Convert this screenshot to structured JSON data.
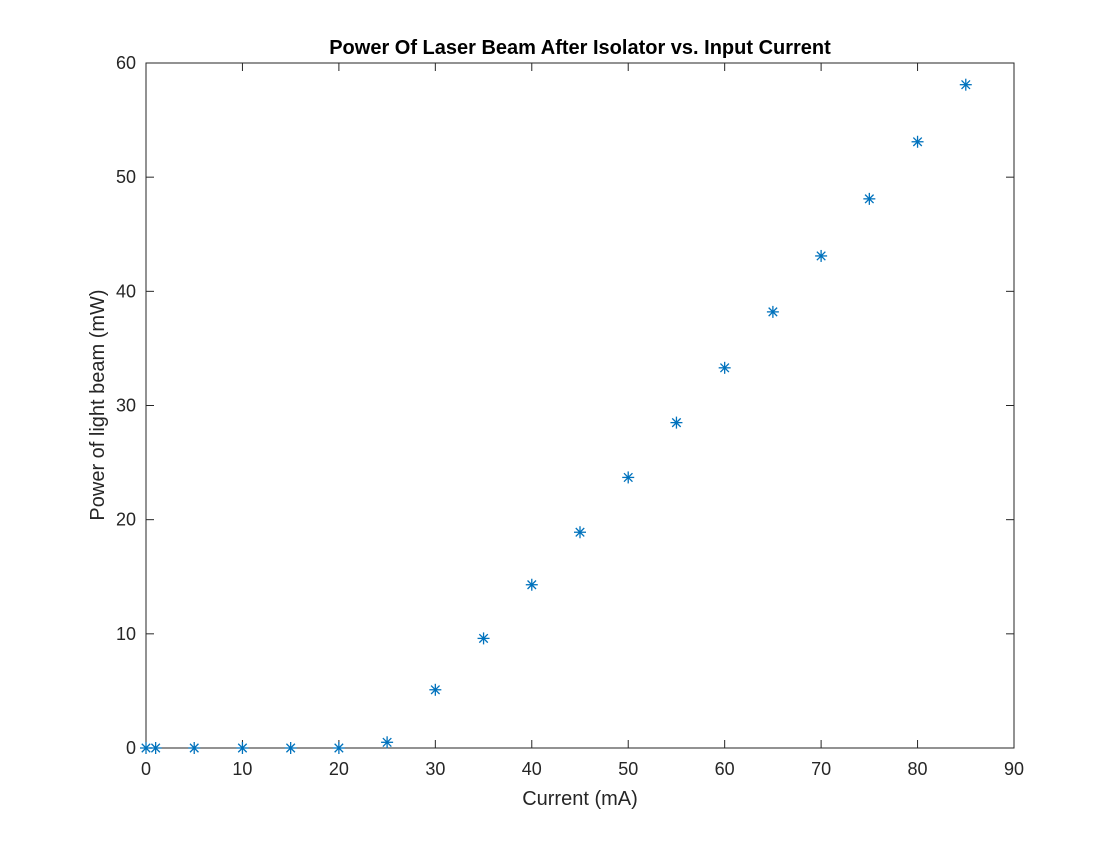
{
  "chart_data": {
    "type": "scatter",
    "title": "Power Of Laser Beam After Isolator vs. Input Current",
    "xlabel": "Current (mA)",
    "ylabel": "Power of light beam (mW)",
    "xlim": [
      0,
      90
    ],
    "ylim": [
      0,
      60
    ],
    "xticks": [
      0,
      10,
      20,
      30,
      40,
      50,
      60,
      70,
      80,
      90
    ],
    "yticks": [
      0,
      10,
      20,
      30,
      40,
      50,
      60
    ],
    "grid": false,
    "legend": "none",
    "marker": "asterisk",
    "color": "#0072BD",
    "series": [
      {
        "x": [
          0,
          1,
          5,
          10,
          15,
          20,
          25,
          30,
          35,
          40,
          45,
          50,
          55,
          60,
          65,
          70,
          75,
          80,
          85
        ],
        "y": [
          0,
          0,
          0,
          0,
          0,
          0,
          0.5,
          5.1,
          9.6,
          14.3,
          18.9,
          23.7,
          28.5,
          33.3,
          38.2,
          43.1,
          48.1,
          53.1,
          58.1
        ]
      }
    ]
  }
}
